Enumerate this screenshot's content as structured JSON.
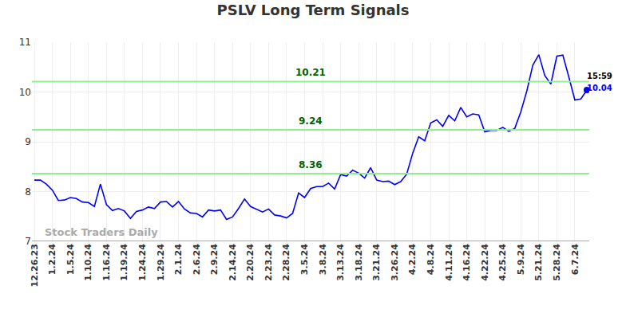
{
  "chart_data": {
    "type": "line",
    "title": "PSLV Long Term Signals",
    "categories": [
      "12.26.23",
      null,
      null,
      "1.2.24",
      null,
      null,
      "1.5.24",
      null,
      null,
      "1.10.24",
      null,
      null,
      "1.16.24",
      null,
      null,
      "1.19.24",
      null,
      null,
      "1.24.24",
      null,
      null,
      "1.29.24",
      null,
      null,
      "2.1.24",
      null,
      null,
      "2.6.24",
      null,
      null,
      "2.9.24",
      null,
      null,
      "2.14.24",
      null,
      null,
      "2.20.24",
      null,
      null,
      "2.23.24",
      null,
      null,
      "2.28.24",
      null,
      null,
      "3.5.24",
      null,
      null,
      "3.8.24",
      null,
      null,
      "3.13.24",
      null,
      null,
      "3.18.24",
      null,
      null,
      "3.21.24",
      null,
      null,
      "3.26.24",
      null,
      null,
      "4.2.24",
      null,
      null,
      "4.8.24",
      null,
      null,
      "4.11.24",
      null,
      null,
      "4.16.24",
      null,
      null,
      "4.22.24",
      null,
      null,
      "4.25.24",
      null,
      null,
      "5.9.24",
      null,
      null,
      "5.21.24",
      null,
      null,
      "5.28.24",
      null,
      null,
      "6.7.24",
      null,
      null
    ],
    "series": [
      {
        "name": "PSLV",
        "color": "#0000ff",
        "values": [
          8.23,
          8.23,
          8.15,
          8.03,
          7.82,
          7.83,
          7.88,
          7.86,
          7.79,
          7.78,
          7.7,
          8.15,
          7.74,
          7.62,
          7.66,
          7.61,
          7.46,
          7.6,
          7.63,
          7.69,
          7.66,
          7.79,
          7.8,
          7.69,
          7.8,
          7.65,
          7.57,
          7.56,
          7.49,
          7.63,
          7.61,
          7.63,
          7.44,
          7.49,
          7.66,
          7.85,
          7.7,
          7.65,
          7.59,
          7.65,
          7.53,
          7.51,
          7.47,
          7.56,
          7.97,
          7.88,
          8.06,
          8.1,
          8.1,
          8.17,
          8.05,
          8.34,
          8.31,
          8.43,
          8.37,
          8.27,
          8.48,
          8.23,
          8.2,
          8.21,
          8.14,
          8.2,
          8.35,
          8.77,
          9.1,
          9.02,
          9.38,
          9.44,
          9.31,
          9.53,
          9.42,
          9.69,
          9.5,
          9.56,
          9.54,
          9.2,
          9.23,
          9.23,
          9.29,
          9.21,
          9.27,
          9.6,
          10.02,
          10.54,
          10.75,
          10.33,
          10.16,
          10.72,
          10.74,
          10.3,
          9.84,
          9.86,
          10.04
        ]
      }
    ],
    "reference_lines": [
      10.21,
      9.24,
      8.36
    ],
    "last_point": {
      "time": "15:59",
      "value": 10.04
    },
    "watermark": "Stock Traders Daily",
    "ylim": [
      7,
      11
    ],
    "yticks": [
      7,
      8,
      9,
      10,
      11
    ],
    "grid": true
  }
}
